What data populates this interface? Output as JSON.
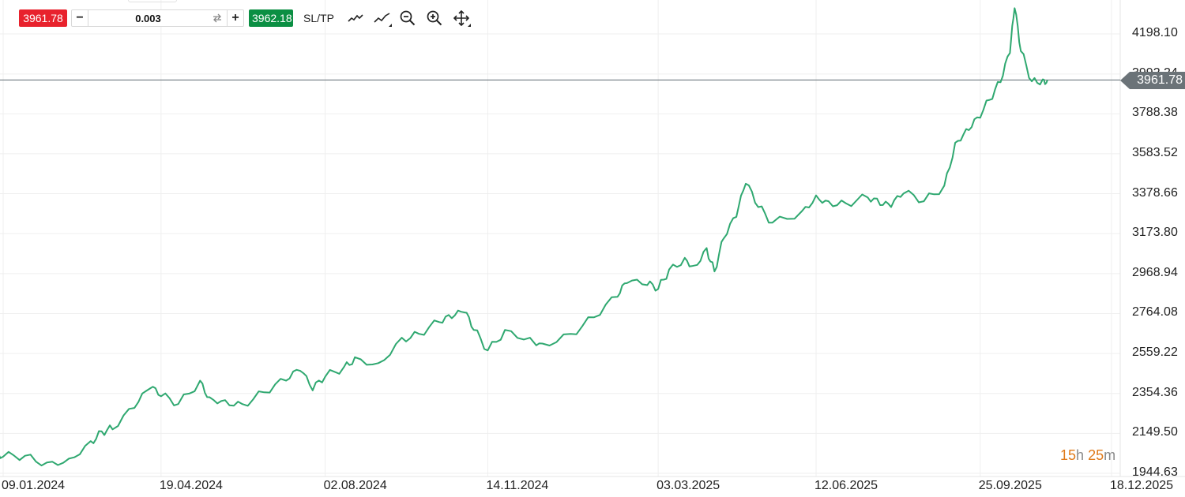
{
  "toolbar": {
    "sell_price": "3961.78",
    "buy_price": "3962.18",
    "quantity": "0.003",
    "minus_label": "−",
    "plus_label": "+",
    "sltp_label": "SL/TP",
    "icons": [
      "line-chart-icon",
      "chart-type-icon",
      "zoom-out-icon",
      "zoom-in-icon",
      "move-icon"
    ]
  },
  "current_price_tag": "3961.78",
  "countdown": {
    "hours": "15",
    "hours_unit": "h",
    "minutes": "25",
    "minutes_unit": "m"
  },
  "colors": {
    "line": "#2fa870",
    "sell": "#e8222d",
    "buy": "#0b8f43",
    "price_tag": "#6b7378",
    "countdown": "#e07a1a"
  },
  "chart_data": {
    "type": "line",
    "title": "",
    "xlabel": "",
    "ylabel": "",
    "grid": true,
    "y_ticks": [
      "4198.10",
      "3992.24",
      "3788.38",
      "3583.52",
      "3378.66",
      "3173.80",
      "2968.94",
      "2764.08",
      "2559.22",
      "2354.36",
      "2149.50",
      "1944.63"
    ],
    "x_ticks": [
      "09.01.2024",
      "19.04.2024",
      "02.08.2024",
      "14.11.2024",
      "03.03.2025",
      "12.06.2025",
      "25.09.2025",
      "18.12.2025"
    ],
    "ylim": [
      1944.63,
      4198.1
    ],
    "current_price": 3961.78,
    "series": [
      {
        "x": [
          "2024-01-02",
          "2024-01-09",
          "2024-01-23",
          "2024-02-06",
          "2024-02-20",
          "2024-03-05",
          "2024-03-12",
          "2024-03-19",
          "2024-04-02",
          "2024-04-12",
          "2024-04-19",
          "2024-04-30",
          "2024-05-14",
          "2024-05-20",
          "2024-05-30",
          "2024-06-10",
          "2024-06-24",
          "2024-07-08",
          "2024-07-17",
          "2024-07-25",
          "2024-08-02",
          "2024-08-14",
          "2024-08-21",
          "2024-09-05",
          "2024-09-20",
          "2024-10-01",
          "2024-10-14",
          "2024-10-22",
          "2024-10-30",
          "2024-11-05",
          "2024-11-14",
          "2024-11-25",
          "2024-12-11",
          "2024-12-19",
          "2025-01-06",
          "2025-01-21",
          "2025-02-05",
          "2025-02-11",
          "2025-02-24",
          "2025-03-03",
          "2025-03-10",
          "2025-03-20",
          "2025-03-26",
          "2025-04-03",
          "2025-04-08",
          "2025-04-14",
          "2025-04-22",
          "2025-04-28",
          "2025-05-06",
          "2025-05-15",
          "2025-06-03",
          "2025-06-12",
          "2025-06-20",
          "2025-07-01",
          "2025-07-15",
          "2025-07-23",
          "2025-07-30",
          "2025-08-07",
          "2025-08-20",
          "2025-09-02",
          "2025-09-09",
          "2025-09-16",
          "2025-09-23",
          "2025-10-01",
          "2025-10-08",
          "2025-10-14",
          "2025-10-17",
          "2025-10-21",
          "2025-10-28",
          "2025-11-04",
          "2025-11-07"
        ],
        "values": [
          2040,
          2030,
          2035,
          2000,
          2020,
          2110,
          2160,
          2170,
          2280,
          2380,
          2340,
          2300,
          2420,
          2335,
          2320,
          2300,
          2360,
          2420,
          2470,
          2370,
          2440,
          2490,
          2540,
          2510,
          2640,
          2660,
          2720,
          2740,
          2770,
          2680,
          2575,
          2680,
          2640,
          2610,
          2660,
          2745,
          2850,
          2920,
          2910,
          2890,
          2990,
          3050,
          3010,
          3100,
          2980,
          3150,
          3260,
          3430,
          3310,
          3230,
          3290,
          3370,
          3340,
          3330,
          3360,
          3320,
          3310,
          3380,
          3340,
          3420,
          3640,
          3710,
          3770,
          3860,
          3950,
          4100,
          4330,
          4110,
          3955,
          3965,
          3961.78
        ]
      }
    ]
  }
}
